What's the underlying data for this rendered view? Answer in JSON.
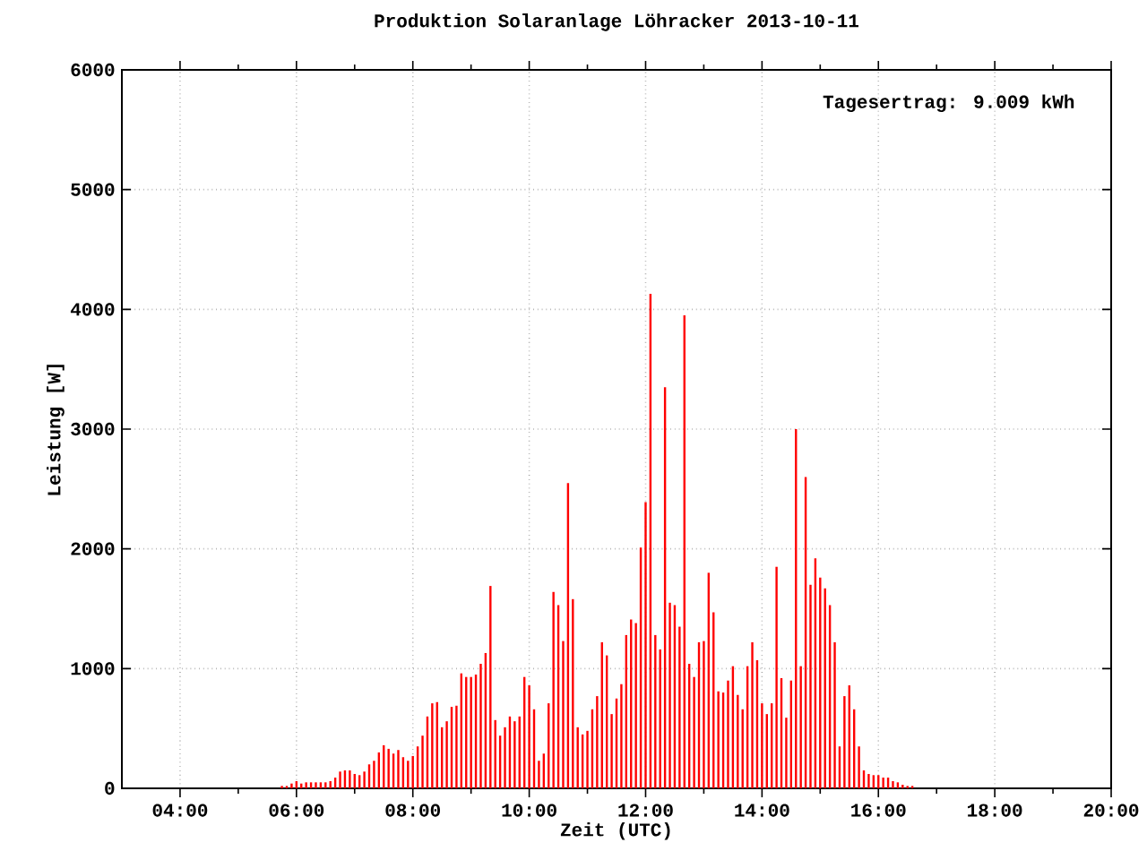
{
  "chart_data": {
    "type": "bar",
    "title": "Produktion Solaranlage Löhracker 2013-10-11",
    "xlabel": "Zeit (UTC)",
    "ylabel": "Leistung [W]",
    "annotations": [
      "Tagesertrag: 9.009 kWh"
    ],
    "color": "#ff0000",
    "grid": true,
    "xlim": [
      3,
      20
    ],
    "ylim": [
      0,
      6000
    ],
    "xticks": [
      {
        "value": 4,
        "label": "04:00"
      },
      {
        "value": 5,
        "label": null
      },
      {
        "value": 6,
        "label": "06:00"
      },
      {
        "value": 7,
        "label": null
      },
      {
        "value": 8,
        "label": "08:00"
      },
      {
        "value": 9,
        "label": null
      },
      {
        "value": 10,
        "label": "10:00"
      },
      {
        "value": 11,
        "label": null
      },
      {
        "value": 12,
        "label": "12:00"
      },
      {
        "value": 13,
        "label": null
      },
      {
        "value": 14,
        "label": "14:00"
      },
      {
        "value": 15,
        "label": null
      },
      {
        "value": 16,
        "label": "16:00"
      },
      {
        "value": 17,
        "label": null
      },
      {
        "value": 18,
        "label": "18:00"
      },
      {
        "value": 19,
        "label": null
      },
      {
        "value": 20,
        "label": "20:00"
      }
    ],
    "yticks": [
      0,
      1000,
      2000,
      3000,
      4000,
      5000,
      6000
    ],
    "x": [
      5.75,
      5.8333,
      5.9167,
      6,
      6.0833,
      6.1667,
      6.25,
      6.3333,
      6.4167,
      6.5,
      6.5833,
      6.6667,
      6.75,
      6.8333,
      6.9167,
      7,
      7.0833,
      7.1667,
      7.25,
      7.3333,
      7.4167,
      7.5,
      7.5833,
      7.6667,
      7.75,
      7.8333,
      7.9167,
      8,
      8.0833,
      8.1667,
      8.25,
      8.3333,
      8.4167,
      8.5,
      8.5833,
      8.6667,
      8.75,
      8.8333,
      8.9167,
      9,
      9.0833,
      9.1667,
      9.25,
      9.3333,
      9.4167,
      9.5,
      9.5833,
      9.6667,
      9.75,
      9.8333,
      9.9167,
      10,
      10.0833,
      10.1667,
      10.25,
      10.3333,
      10.4167,
      10.5,
      10.5833,
      10.6667,
      10.75,
      10.8333,
      10.9167,
      11,
      11.0833,
      11.1667,
      11.25,
      11.3333,
      11.4167,
      11.5,
      11.5833,
      11.6667,
      11.75,
      11.8333,
      11.9167,
      12,
      12.0833,
      12.1667,
      12.25,
      12.3333,
      12.4167,
      12.5,
      12.5833,
      12.6667,
      12.75,
      12.8333,
      12.9167,
      13,
      13.0833,
      13.1667,
      13.25,
      13.3333,
      13.4167,
      13.5,
      13.5833,
      13.6667,
      13.75,
      13.8333,
      13.9167,
      14,
      14.0833,
      14.1667,
      14.25,
      14.3333,
      14.4167,
      14.5,
      14.5833,
      14.6667,
      14.75,
      14.8333,
      14.9167,
      15,
      15.0833,
      15.1667,
      15.25,
      15.3333,
      15.4167,
      15.5,
      15.5833,
      15.6667,
      15.75,
      15.8333,
      15.9167,
      16,
      16.0833,
      16.1667,
      16.25,
      16.3333,
      16.4167,
      16.5,
      16.5833
    ],
    "values": [
      20,
      20,
      40,
      60,
      40,
      50,
      50,
      50,
      50,
      50,
      60,
      90,
      140,
      150,
      150,
      120,
      110,
      140,
      200,
      230,
      300,
      360,
      330,
      290,
      320,
      260,
      230,
      270,
      350,
      440,
      600,
      710,
      720,
      510,
      560,
      680,
      690,
      960,
      930,
      930,
      950,
      1040,
      1130,
      1690,
      570,
      440,
      510,
      600,
      560,
      600,
      930,
      860,
      660,
      230,
      290,
      710,
      1640,
      1530,
      1230,
      2550,
      1580,
      510,
      450,
      480,
      660,
      770,
      1220,
      1110,
      620,
      750,
      870,
      1280,
      1410,
      1380,
      2010,
      2390,
      4130,
      1280,
      1160,
      3350,
      1550,
      1530,
      1350,
      3950,
      1040,
      930,
      1220,
      1230,
      1800,
      1470,
      810,
      800,
      900,
      1020,
      780,
      660,
      1020,
      1220,
      1070,
      710,
      620,
      710,
      1850,
      920,
      590,
      900,
      3000,
      1020,
      2600,
      1700,
      1920,
      1760,
      1670,
      1530,
      1220,
      350,
      770,
      860,
      660,
      350,
      150,
      120,
      110,
      110,
      90,
      90,
      60,
      50,
      30,
      20,
      20
    ]
  }
}
